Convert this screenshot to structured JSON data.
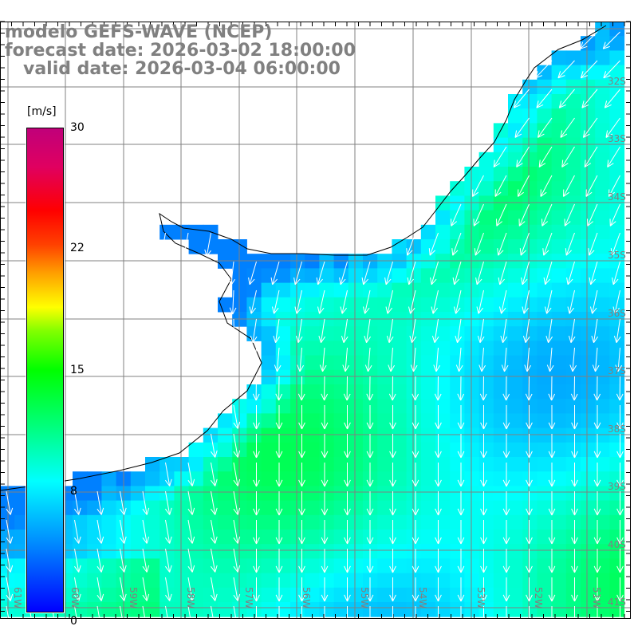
{
  "title": {
    "line1": "modelo GEFS-WAVE (NCEP)",
    "line2": "forecast date: 2026-03-02 18:00:00",
    "line3": "   valid date: 2026-03-04 06:00:00"
  },
  "colorbar": {
    "unit": "[m/s]",
    "labels": [
      "30",
      "22",
      "15",
      "8",
      "0"
    ],
    "range": [
      0,
      30
    ]
  },
  "axes": {
    "lon_labels": [
      "61W",
      "60W",
      "59W",
      "58W",
      "57W",
      "56W",
      "55W",
      "54W",
      "53W",
      "52W",
      "51W"
    ],
    "lat_labels": [
      "32S",
      "33S",
      "34S",
      "35S",
      "36S",
      "37S",
      "38S",
      "39S",
      "40S",
      "41S"
    ]
  },
  "colors": {
    "grid": "#808080",
    "land": "#ffffff",
    "coast": "#000000",
    "arrow": "#ffffff"
  }
}
